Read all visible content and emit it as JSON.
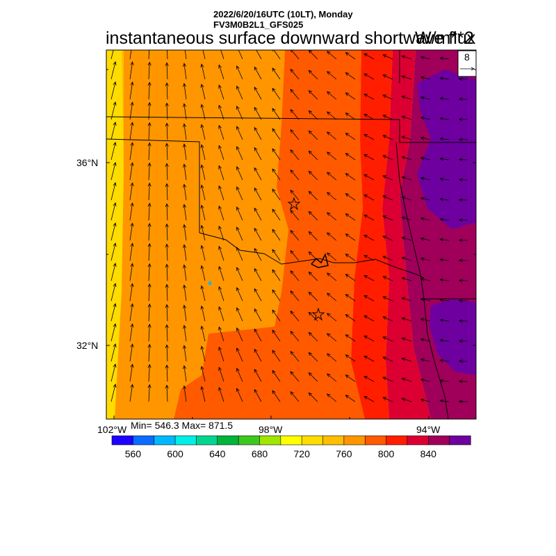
{
  "header": {
    "line1": "2022/6/20/16UTC (10LT), Monday",
    "line2": "FV3M0B2L1_GFS025",
    "title": "instantaneous surface downward shortwave flux",
    "units": "W/m**2"
  },
  "map": {
    "region": "Oklahoma / Texas",
    "lat_labels": [
      "36°N",
      "32°N"
    ],
    "lon_labels": [
      "102°W",
      "98°W",
      "94°W"
    ],
    "lat_range": [
      29.6,
      38.6
    ],
    "lon_range": [
      -102.2,
      -92.5
    ],
    "markers": [
      "star-icon",
      "star-icon"
    ],
    "vector_reference": "8"
  },
  "stats": {
    "text": "Min= 546.3 Max= 871.5",
    "min": 546.3,
    "max": 871.5
  },
  "colorbar": {
    "colors": [
      "#1e00ff",
      "#0a6cff",
      "#00b8ff",
      "#00f0e8",
      "#00d690",
      "#00b43c",
      "#3cc81e",
      "#a0e600",
      "#ffff00",
      "#ffdc00",
      "#ffbe00",
      "#ff9600",
      "#ff5a00",
      "#ff1e00",
      "#dc0032",
      "#a0005a",
      "#6e00a0"
    ],
    "ticks": [
      "560",
      "600",
      "640",
      "680",
      "720",
      "760",
      "800",
      "840"
    ]
  }
}
